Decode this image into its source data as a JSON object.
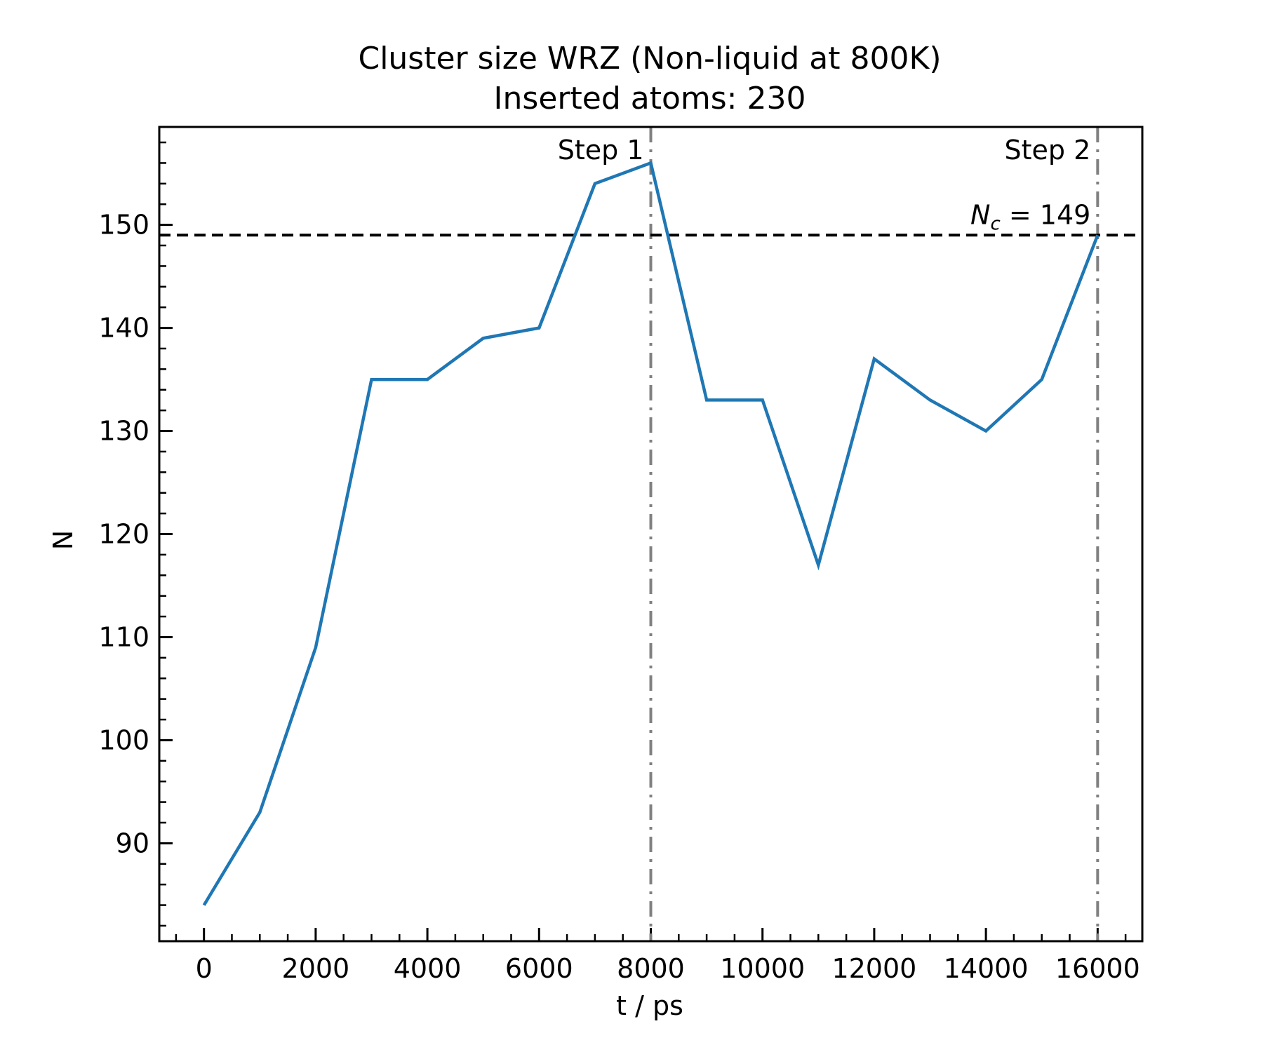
{
  "chart_data": {
    "type": "line",
    "title": "Cluster size WRZ (Non-liquid at 800K)",
    "subtitle": "Inserted atoms: 230",
    "xlabel": "t / ps",
    "ylabel": "N",
    "xlim": [
      -800,
      16800
    ],
    "ylim": [
      80.5,
      159.5
    ],
    "xticks": [
      0,
      2000,
      4000,
      6000,
      8000,
      10000,
      12000,
      14000,
      16000
    ],
    "xminor_step": 500,
    "yticks": [
      90,
      100,
      110,
      120,
      130,
      140,
      150
    ],
    "yminor_step": 2,
    "grid": false,
    "legend": "none",
    "series": [
      {
        "color": "#1f77b4",
        "x": [
          0,
          1000,
          2000,
          3000,
          4000,
          5000,
          6000,
          7000,
          8000,
          9000,
          10000,
          11000,
          12000,
          13000,
          14000,
          15000,
          16000
        ],
        "y": [
          84,
          93,
          109,
          135,
          135,
          139,
          140,
          154,
          156,
          133,
          133,
          117,
          137,
          133,
          130,
          135,
          149
        ]
      }
    ],
    "hlines": [
      {
        "y": 149,
        "style": "dashed",
        "color": "#000000",
        "label_main": "N",
        "label_sub": "c",
        "label_rest": " = 149"
      }
    ],
    "vlines": [
      {
        "x": 8000,
        "style": "dashdot",
        "color": "#808080",
        "label": "Step 1"
      },
      {
        "x": 16000,
        "style": "dashdot",
        "color": "#808080",
        "label": "Step 2"
      }
    ]
  }
}
